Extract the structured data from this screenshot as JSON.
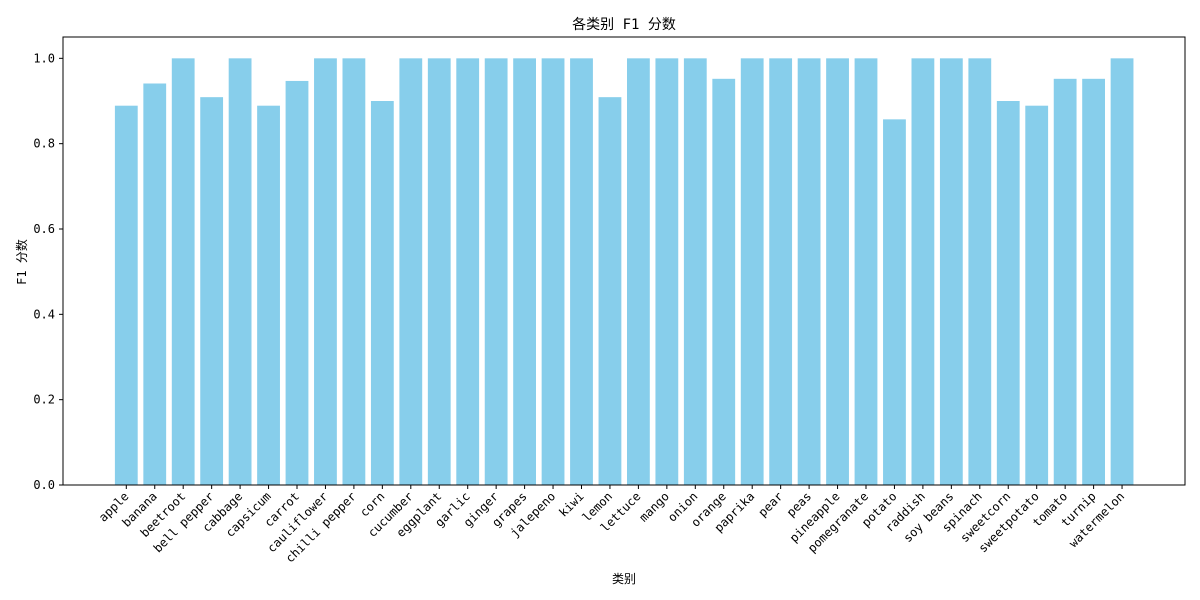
{
  "chart_data": {
    "type": "bar",
    "title": "各类别 F1 分数",
    "xlabel": "类别",
    "ylabel": "F1 分数",
    "ylim": [
      0,
      1.05
    ],
    "yticks": [
      "0.0",
      "0.2",
      "0.4",
      "0.6",
      "0.8",
      "1.0"
    ],
    "grid": false,
    "bar_color": "#87CEEB",
    "categories": [
      "apple",
      "banana",
      "beetroot",
      "bell pepper",
      "cabbage",
      "capsicum",
      "carrot",
      "cauliflower",
      "chilli pepper",
      "corn",
      "cucumber",
      "eggplant",
      "garlic",
      "ginger",
      "grapes",
      "jalepeno",
      "kiwi",
      "lemon",
      "lettuce",
      "mango",
      "onion",
      "orange",
      "paprika",
      "pear",
      "peas",
      "pineapple",
      "pomegranate",
      "potato",
      "raddish",
      "soy beans",
      "spinach",
      "sweetcorn",
      "sweetpotato",
      "tomato",
      "turnip",
      "watermelon"
    ],
    "values": [
      0.889,
      0.941,
      1.0,
      0.909,
      1.0,
      0.889,
      0.947,
      1.0,
      1.0,
      0.9,
      1.0,
      1.0,
      1.0,
      1.0,
      1.0,
      1.0,
      1.0,
      0.909,
      1.0,
      1.0,
      1.0,
      0.952,
      1.0,
      1.0,
      1.0,
      1.0,
      1.0,
      0.857,
      1.0,
      1.0,
      1.0,
      0.9,
      0.889,
      0.952,
      0.952,
      1.0
    ]
  }
}
